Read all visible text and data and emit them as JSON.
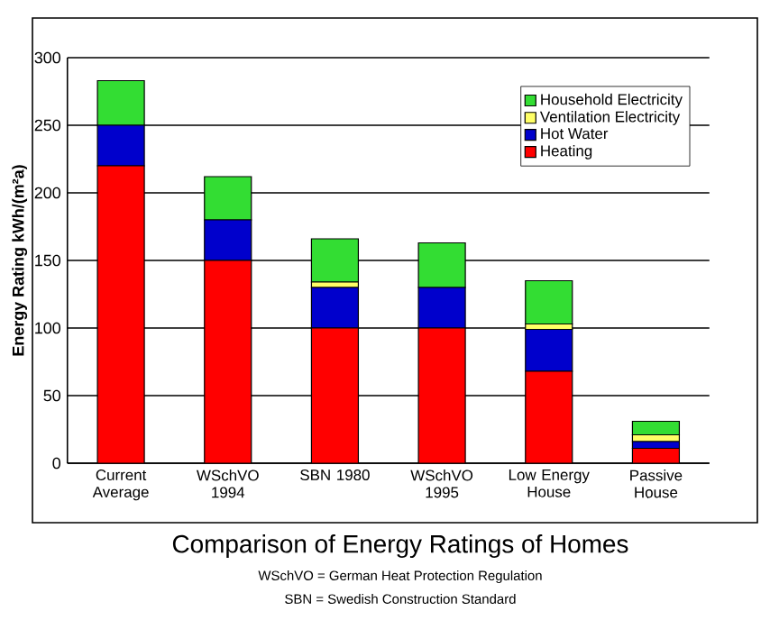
{
  "chart_data": {
    "type": "bar",
    "stacked": true,
    "title": "Comparison of Energy Ratings of Homes",
    "annotations": [
      "WSchVO = German Heat Protection Regulation",
      "SBN = Swedish Construction Standard"
    ],
    "ylabel": "Energy Rating kWh/(m²a)",
    "categories": [
      "Current Average",
      "WSchVO 1994",
      "SBN 1980",
      "WSchVO 1995",
      "Low Energy House",
      "Passive House"
    ],
    "series": [
      {
        "name": "Heating",
        "color": "#ff0000",
        "values": [
          220,
          150,
          100,
          100,
          68,
          11
        ]
      },
      {
        "name": "Hot Water",
        "color": "#0000cc",
        "values": [
          30,
          30,
          30,
          30,
          31,
          5
        ]
      },
      {
        "name": "Ventilation Electricity",
        "color": "#ffff66",
        "values": [
          0,
          0,
          4,
          0,
          4,
          5
        ]
      },
      {
        "name": "Household Electricity",
        "color": "#33dd33",
        "values": [
          33,
          32,
          32,
          33,
          32,
          10
        ]
      }
    ],
    "ylim": [
      0,
      300
    ],
    "yticks": [
      0,
      50,
      100,
      150,
      200,
      250,
      300
    ],
    "grid": "y",
    "legend": "top right"
  }
}
